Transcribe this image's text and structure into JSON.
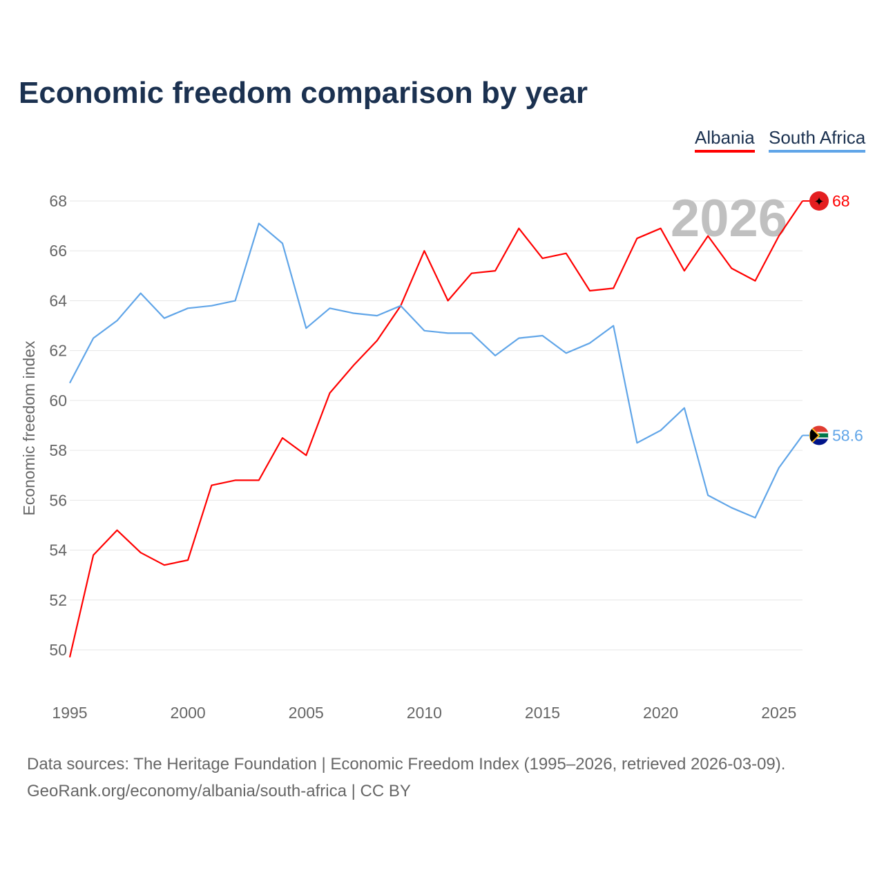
{
  "chart_data": {
    "type": "line",
    "title": "Economic freedom comparison by year",
    "ylabel": "Economic freedom index",
    "xlabel": "",
    "ylim": [
      48,
      69
    ],
    "xlim": [
      1995,
      2026
    ],
    "yticks": [
      50,
      52,
      54,
      56,
      58,
      60,
      62,
      64,
      66,
      68
    ],
    "xticks": [
      1995,
      2000,
      2005,
      2010,
      2015,
      2020,
      2025
    ],
    "grid": true,
    "legend_position": "top-right",
    "year_watermark": "2026",
    "x": [
      1995,
      1996,
      1997,
      1998,
      1999,
      2000,
      2001,
      2002,
      2003,
      2004,
      2005,
      2006,
      2007,
      2008,
      2009,
      2010,
      2011,
      2012,
      2013,
      2014,
      2015,
      2016,
      2017,
      2018,
      2019,
      2020,
      2021,
      2022,
      2023,
      2024,
      2025,
      2026
    ],
    "series": [
      {
        "name": "Albania",
        "color": "#ff0000",
        "end_label": "68",
        "values": [
          49.7,
          53.8,
          54.8,
          53.9,
          53.4,
          53.6,
          56.6,
          56.8,
          56.8,
          58.5,
          57.8,
          60.3,
          61.4,
          62.4,
          63.8,
          66.0,
          64.0,
          65.1,
          65.2,
          66.9,
          65.7,
          65.9,
          64.4,
          64.5,
          66.5,
          66.9,
          65.2,
          66.6,
          65.3,
          64.8,
          66.6,
          68.0
        ]
      },
      {
        "name": "South Africa",
        "color": "#60a5e8",
        "end_label": "58.6",
        "values": [
          60.7,
          62.5,
          63.2,
          64.3,
          63.3,
          63.7,
          63.8,
          64.0,
          67.1,
          66.3,
          62.9,
          63.7,
          63.5,
          63.4,
          63.8,
          62.8,
          62.7,
          62.7,
          61.8,
          62.5,
          62.6,
          61.9,
          62.3,
          63.0,
          58.3,
          58.8,
          59.7,
          56.2,
          55.7,
          55.3,
          57.3,
          58.6
        ]
      }
    ]
  },
  "source": {
    "line1": "Data sources: The Heritage Foundation | Economic Freedom Index (1995–2026, retrieved 2026-03-09).",
    "line2": "GeoRank.org/economy/albania/south-africa | CC BY"
  }
}
